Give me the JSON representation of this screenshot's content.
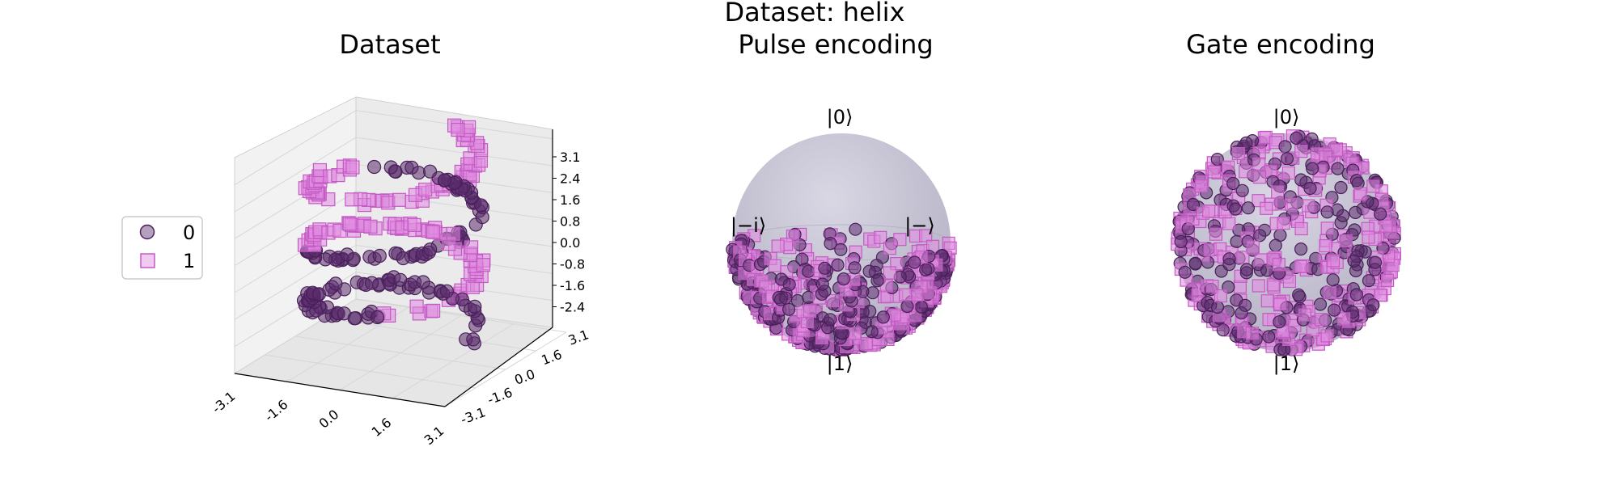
{
  "figure": {
    "suptitle": "Dataset: helix"
  },
  "legend": {
    "items": [
      {
        "label": "0"
      },
      {
        "label": "1"
      }
    ]
  },
  "colors": {
    "class0_fill": "#5b2d6e",
    "class0_edge": "#4a1f5a",
    "class1_fill": "#e08ae0",
    "class1_edge": "#c45ac4",
    "sphere_light": "#d9d7e4",
    "sphere_dark": "#b2b0c2"
  },
  "chart_data": [
    {
      "type": "scatter3d",
      "title": "Dataset",
      "series": [
        {
          "name": "0",
          "marker": "circle"
        },
        {
          "name": "1",
          "marker": "square"
        }
      ],
      "helix": {
        "param_range": [
          -3.1,
          3.1
        ],
        "turns": 3.2,
        "class0_segments": [
          [
            0.0,
            0.25
          ],
          [
            0.5,
            0.75
          ]
        ],
        "class1_segments": [
          [
            0.25,
            0.5
          ],
          [
            0.75,
            1.0
          ]
        ],
        "points_per_class": 150
      },
      "xlim": [
        -3.1,
        3.1
      ],
      "ylim": [
        -3.1,
        3.1
      ],
      "zlim": [
        -3.1,
        3.1
      ],
      "x_ticks": [
        "-3.1",
        "-1.6",
        "0.0",
        "1.6",
        "3.1"
      ],
      "y_ticks": [
        "-3.1",
        "-1.6",
        "0.0",
        "1.6",
        "3.1"
      ],
      "z_ticks": [
        "3.1",
        "2.4",
        "1.6",
        "0.8",
        "0.0",
        "-0.8",
        "-1.6",
        "-2.4"
      ],
      "grid": true,
      "legend_position": "left"
    },
    {
      "type": "bloch_sphere",
      "title": "Pulse encoding",
      "labels": {
        "top": "|0⟩",
        "bottom": "|1⟩",
        "left": "|−i⟩",
        "right": "|−⟩"
      },
      "distribution": "lower_hemisphere",
      "points_per_class": 230
    },
    {
      "type": "bloch_sphere",
      "title": "Gate encoding",
      "labels": {
        "top": "|0⟩",
        "bottom": "|1⟩"
      },
      "distribution": "full_sphere",
      "points_per_class": 260
    }
  ]
}
